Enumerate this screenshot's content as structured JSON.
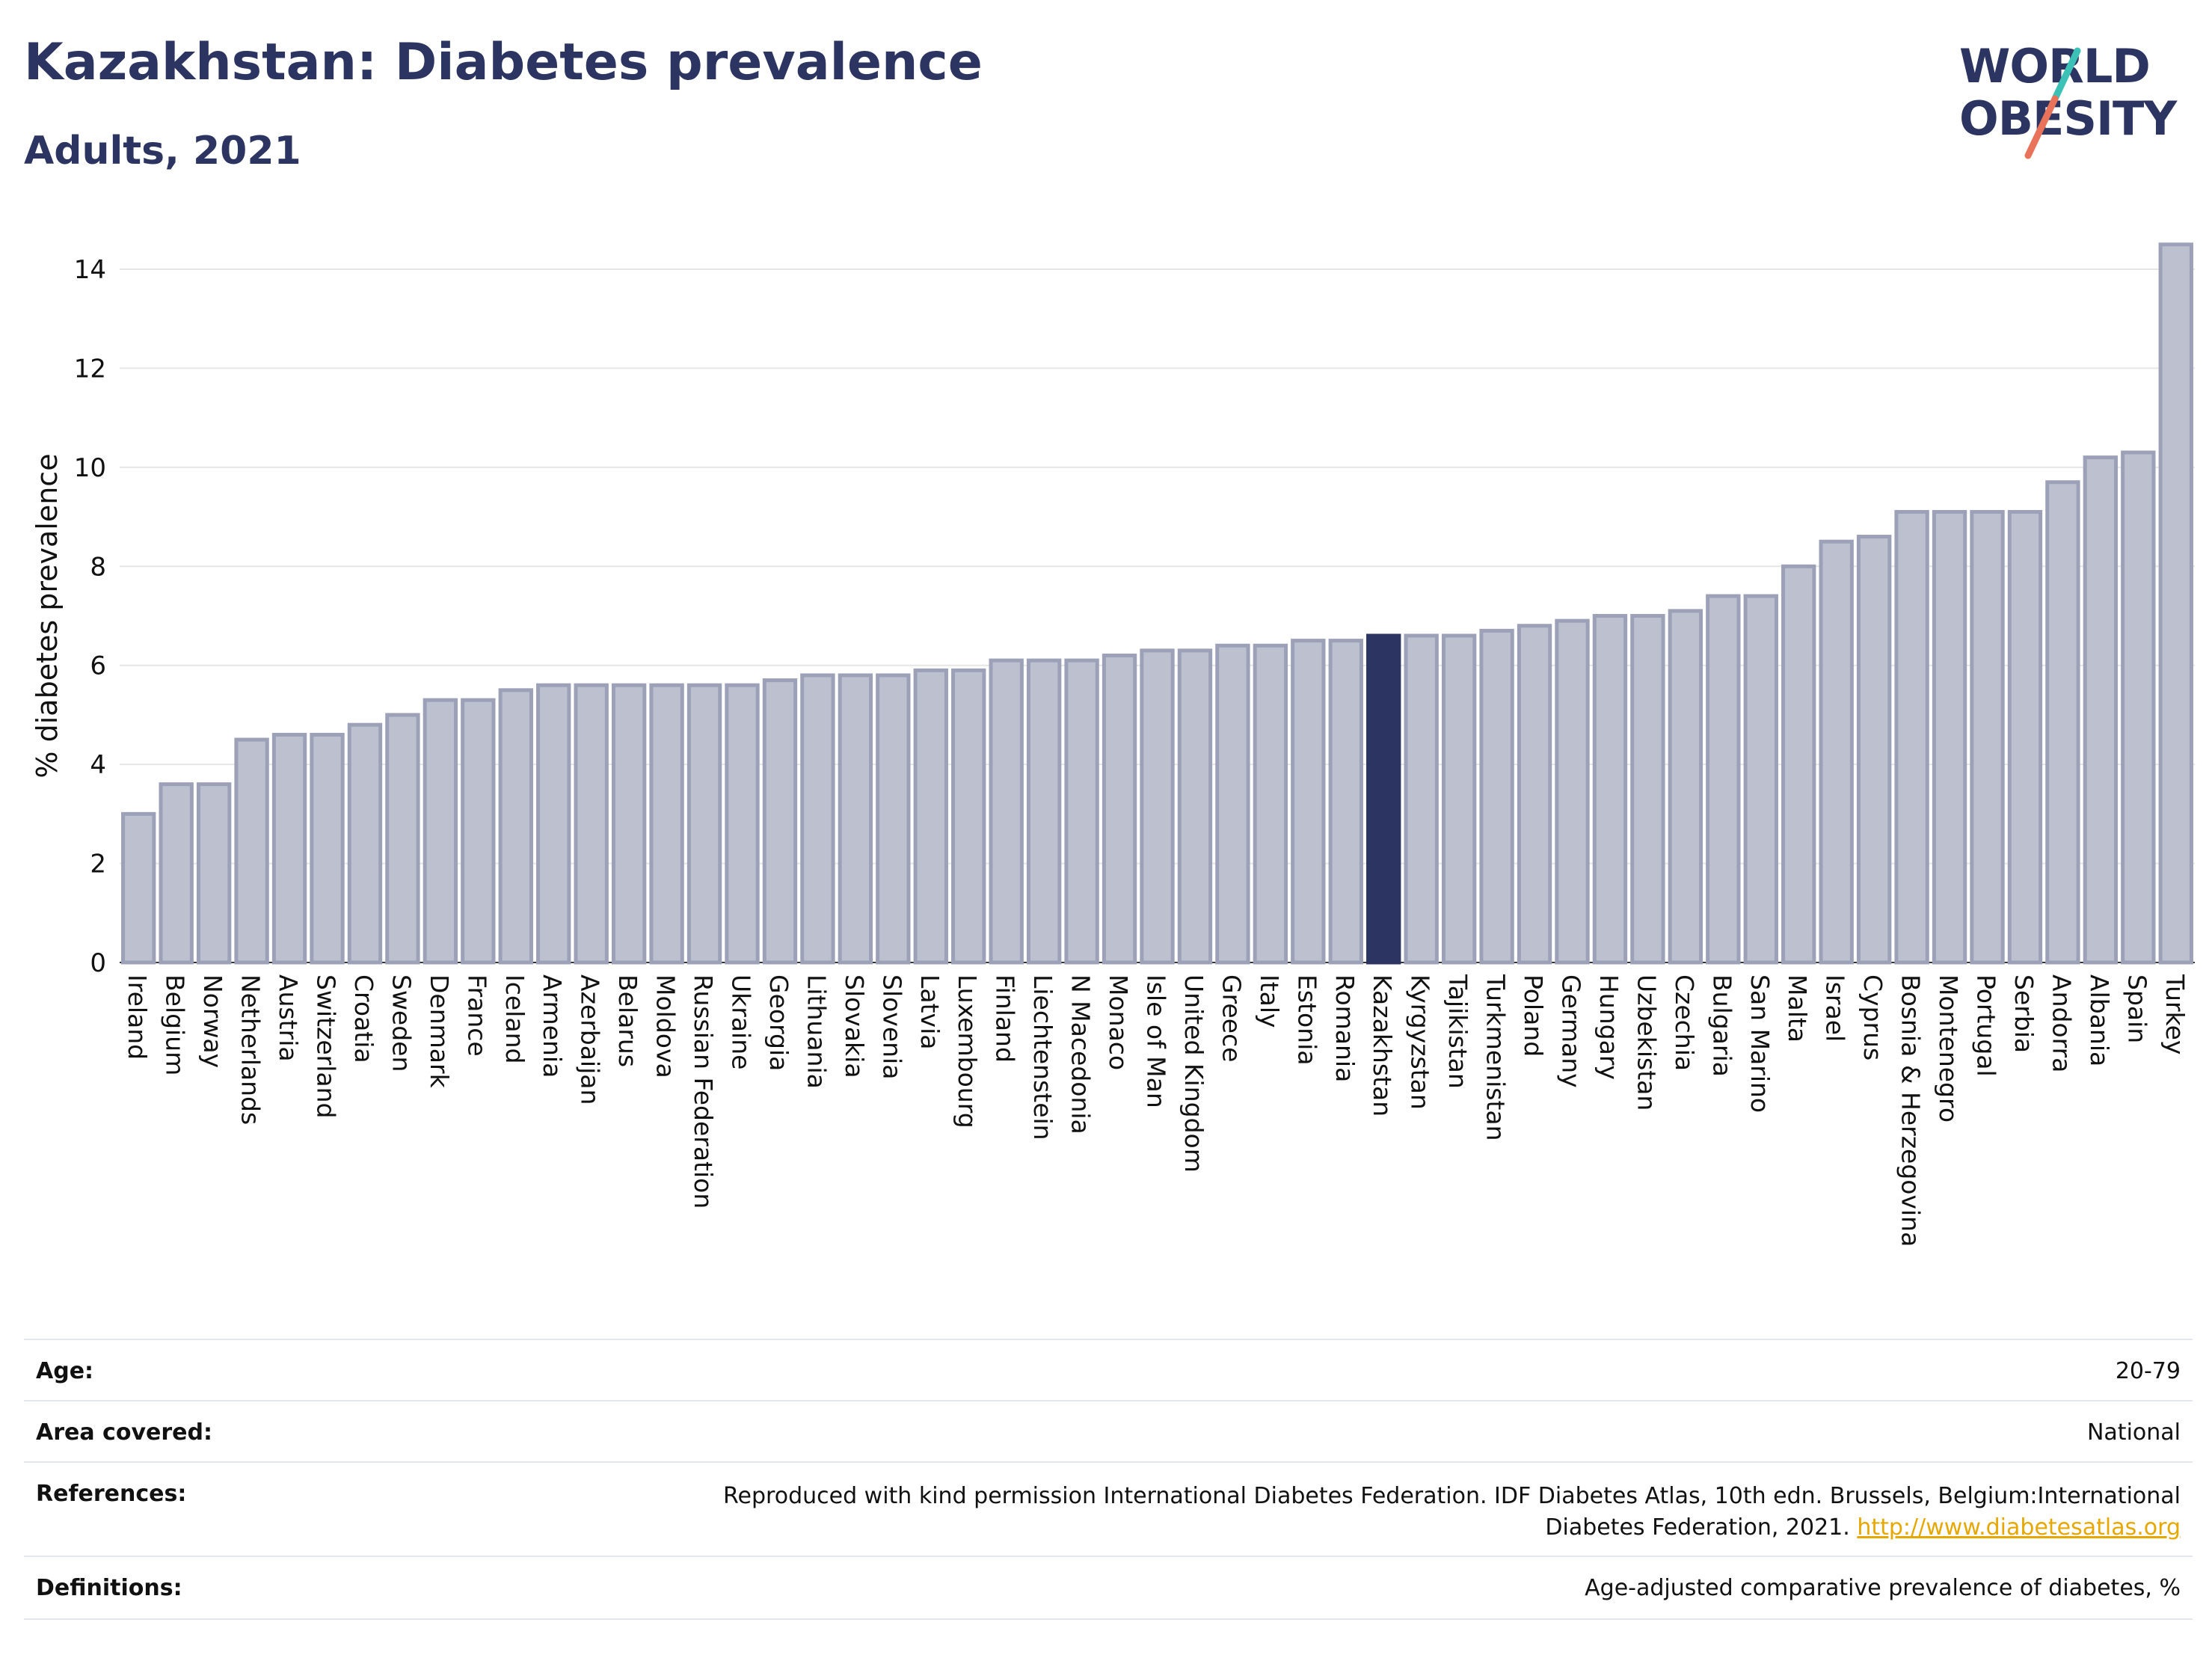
{
  "header": {
    "title": "Kazakhstan: Diabetes prevalence",
    "subtitle": "Adults, 2021"
  },
  "logo": {
    "line1": "WORLD",
    "line2": "OBESITY",
    "accent1": "#3cc1b7",
    "accent2": "#e8735a"
  },
  "chart_data": {
    "type": "bar",
    "ylabel": "% diabetes prevalence",
    "ylim": [
      0,
      15
    ],
    "yticks": [
      0,
      2,
      4,
      6,
      8,
      10,
      12,
      14
    ],
    "grid": true,
    "highlight": "Kazakhstan",
    "colors": {
      "bar": "#bcc0cf",
      "bar_edge": "#9ca1b8",
      "highlight": "#2c3561"
    },
    "categories": [
      "Ireland",
      "Belgium",
      "Norway",
      "Netherlands",
      "Austria",
      "Switzerland",
      "Croatia",
      "Sweden",
      "Denmark",
      "France",
      "Iceland",
      "Armenia",
      "Azerbaijan",
      "Belarus",
      "Moldova",
      "Russian Federation",
      "Ukraine",
      "Georgia",
      "Lithuania",
      "Slovakia",
      "Slovenia",
      "Latvia",
      "Luxembourg",
      "Finland",
      "Liechtenstein",
      "N Macedonia",
      "Monaco",
      "Isle of Man",
      "United Kingdom",
      "Greece",
      "Italy",
      "Estonia",
      "Romania",
      "Kazakhstan",
      "Kyrgyzstan",
      "Tajikistan",
      "Turkmenistan",
      "Poland",
      "Germany",
      "Hungary",
      "Uzbekistan",
      "Czechia",
      "Bulgaria",
      "San Marino",
      "Malta",
      "Israel",
      "Cyprus",
      "Bosnia & Herzegovina",
      "Montenegro",
      "Portugal",
      "Serbia",
      "Andorra",
      "Albania",
      "Spain",
      "Turkey"
    ],
    "values": [
      3.0,
      3.6,
      3.6,
      4.5,
      4.6,
      4.6,
      4.8,
      5.0,
      5.3,
      5.3,
      5.5,
      5.6,
      5.6,
      5.6,
      5.6,
      5.6,
      5.6,
      5.7,
      5.8,
      5.8,
      5.8,
      5.9,
      5.9,
      6.1,
      6.1,
      6.1,
      6.2,
      6.3,
      6.3,
      6.4,
      6.4,
      6.5,
      6.5,
      6.6,
      6.6,
      6.6,
      6.7,
      6.8,
      6.9,
      7.0,
      7.0,
      7.1,
      7.4,
      7.4,
      8.0,
      8.5,
      8.6,
      9.1,
      9.1,
      9.1,
      9.1,
      9.7,
      10.2,
      10.3,
      14.5
    ]
  },
  "info": {
    "age_label": "Age:",
    "age_value": "20-79",
    "area_label": "Area covered:",
    "area_value": "National",
    "refs_label": "References:",
    "refs_line1": "Reproduced with kind permission International Diabetes Federation.  IDF Diabetes Atlas, 10th edn. Brussels, Belgium:International",
    "refs_line2": "Diabetes Federation, 2021. ",
    "refs_link": "http://www.diabetesatlas.org",
    "defs_label": "Definitions:",
    "defs_value": "Age-adjusted comparative prevalence of diabetes, %"
  }
}
